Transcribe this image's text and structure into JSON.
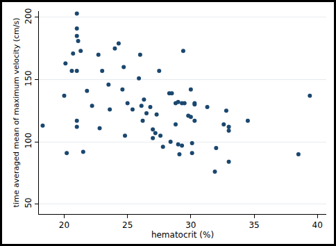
{
  "chart_data": {
    "type": "scatter",
    "x_label": "hematocrit (%)",
    "y_label": "time averaged mean of maximum velocity (cm/s)",
    "x": [
      18.3,
      20.0,
      20.1,
      20.2,
      20.6,
      20.7,
      21.0,
      21.0,
      21.0,
      21.1,
      21.0,
      21.0,
      21.0,
      21.3,
      21.5,
      21.8,
      22.2,
      22.7,
      22.8,
      23.0,
      23.5,
      23.6,
      24.0,
      24.3,
      24.6,
      24.7,
      24.8,
      25.0,
      25.4,
      25.9,
      26.0,
      26.1,
      26.3,
      26.2,
      26.5,
      26.8,
      27.0,
      27.0,
      27.2,
      27.3,
      27.5,
      27.6,
      27.8,
      28.3,
      28.5,
      28.4,
      28.8,
      28.8,
      29.0,
      29.0,
      29.1,
      29.3,
      29.3,
      29.4,
      29.5,
      29.8,
      30.0,
      30.0,
      30.1,
      30.1,
      30.3,
      30.3,
      30.3,
      31.3,
      32.0,
      31.9,
      32.6,
      32.8,
      33.0,
      33.0,
      33.0,
      34.5,
      38.5,
      39.4
    ],
    "values": [
      113,
      137,
      163,
      91,
      157,
      171,
      203,
      191,
      185,
      181,
      157,
      117,
      112,
      173,
      92,
      141,
      129,
      170,
      111,
      157,
      146,
      126,
      175,
      179,
      142,
      160,
      105,
      131,
      126,
      151,
      170,
      129,
      134,
      117,
      123,
      128,
      110,
      103,
      107,
      122,
      157,
      105,
      96,
      139,
      139,
      100,
      131,
      114,
      132,
      98,
      90,
      131,
      97,
      173,
      131,
      121,
      142,
      120,
      99,
      91,
      131,
      117,
      130,
      128,
      95,
      76,
      114,
      125,
      112,
      109,
      84,
      117,
      90,
      137
    ],
    "color": "#1a476f",
    "marker": "circle",
    "xlim": [
      18,
      40.7
    ],
    "xticks": [
      20,
      25,
      30,
      35,
      40
    ],
    "ylim": [
      42,
      205
    ],
    "yticks": [
      50,
      100,
      150,
      200
    ],
    "grid": true
  }
}
